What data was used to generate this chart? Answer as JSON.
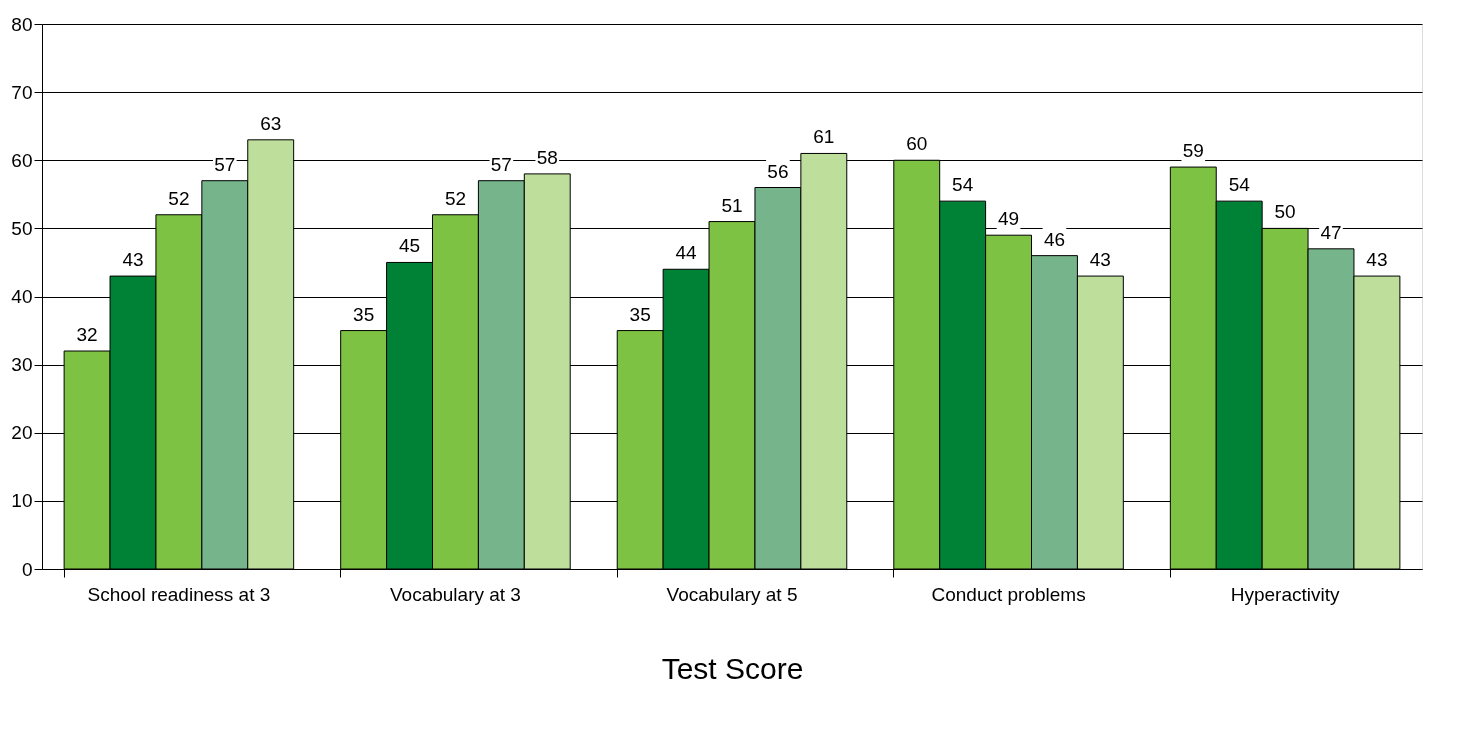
{
  "chart_data": {
    "type": "bar",
    "xlabel": "Test Score",
    "categories": [
      "School readiness at 3",
      "Vocabulary at 3",
      "Vocabulary at 5",
      "Conduct problems",
      "Hyperactivity"
    ],
    "series": [
      {
        "color": "#7dc242",
        "values": [
          32,
          35,
          35,
          60,
          59
        ]
      },
      {
        "color": "#008236",
        "values": [
          43,
          45,
          44,
          54,
          54
        ]
      },
      {
        "color": "#7dc242",
        "values": [
          52,
          52,
          51,
          49,
          50
        ]
      },
      {
        "color": "#76b58b",
        "values": [
          57,
          57,
          56,
          46,
          47
        ]
      },
      {
        "color": "#bedf9c",
        "values": [
          63,
          58,
          61,
          43,
          43
        ]
      }
    ],
    "ylim": [
      0,
      80
    ],
    "yticks": [
      0,
      10,
      20,
      30,
      40,
      50,
      60,
      70,
      80
    ],
    "grid": "y",
    "data_labels": true,
    "legend": false
  }
}
